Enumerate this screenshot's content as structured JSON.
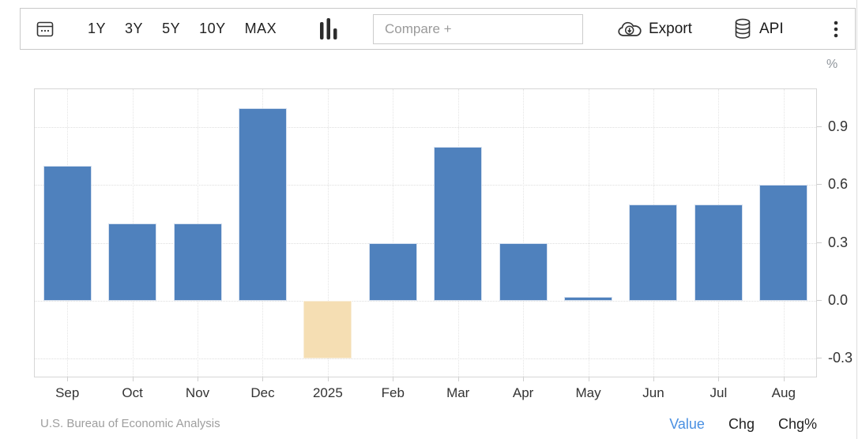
{
  "toolbar": {
    "calendar_icon": "calendar-icon",
    "ranges": [
      "1Y",
      "3Y",
      "5Y",
      "10Y",
      "MAX"
    ],
    "chart_type_icon": "bar-chart-icon",
    "compare_placeholder": "Compare +",
    "export": {
      "label": "Export",
      "icon": "cloud-download-icon"
    },
    "api": {
      "label": "API",
      "icon": "database-icon"
    },
    "menu_icon": "kebab-menu-icon"
  },
  "chart_data": {
    "type": "bar",
    "title": "",
    "unit_label": "%",
    "categories": [
      "Sep",
      "Oct",
      "Nov",
      "Dec",
      "2025",
      "Feb",
      "Mar",
      "Apr",
      "May",
      "Jun",
      "Jul",
      "Aug"
    ],
    "values": [
      0.7,
      0.4,
      0.4,
      1.0,
      -0.3,
      0.3,
      0.8,
      0.3,
      0.02,
      0.5,
      0.5,
      0.6
    ],
    "highlight_index": 4,
    "yticks": [
      0.9,
      0.6,
      0.3,
      0.0,
      -0.3
    ],
    "ylim": [
      -0.396,
      1.099
    ],
    "grid": true,
    "legend": "none",
    "yaxis_side": "right",
    "colors": {
      "bar": "#4f81bd",
      "bar_border": "#d5e0ef",
      "highlight_bar": "#f5deb3",
      "highlight_border": "#f9edd8"
    }
  },
  "footer": {
    "source": "U.S. Bureau of Economic Analysis",
    "links": [
      {
        "label": "Value",
        "active": true
      },
      {
        "label": "Chg",
        "active": false
      },
      {
        "label": "Chg%",
        "active": false
      }
    ]
  }
}
